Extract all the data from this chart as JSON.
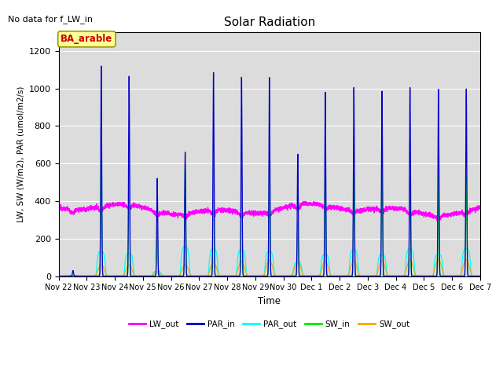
{
  "title": "Solar Radiation",
  "subtitle": "No data for f_LW_in",
  "xlabel": "Time",
  "ylabel": "LW, SW (W/m2), PAR (umol/m2/s)",
  "ylim": [
    0,
    1300
  ],
  "yticks": [
    0,
    200,
    400,
    600,
    800,
    1000,
    1200
  ],
  "background_color": "#dcdcdc",
  "legend_labels": [
    "LW_out",
    "PAR_in",
    "PAR_out",
    "SW_in",
    "SW_out"
  ],
  "legend_colors": [
    "#ff00ff",
    "#0000cd",
    "#00ffff",
    "#00ee00",
    "#ffa500"
  ],
  "annotation_text": "BA_arable",
  "annotation_color": "#cc0000",
  "annotation_bg": "#ffff99",
  "n_days": 15,
  "par_in_peaks": [
    30,
    1120,
    1070,
    520,
    660,
    1090,
    1060,
    1060,
    650,
    980,
    1005,
    985,
    1005,
    1000,
    1000
  ],
  "par_out_peaks": [
    5,
    130,
    120,
    25,
    155,
    145,
    140,
    130,
    75,
    115,
    140,
    115,
    145,
    115,
    145
  ],
  "sw_in_peaks": [
    5,
    620,
    590,
    255,
    595,
    600,
    575,
    595,
    295,
    515,
    545,
    535,
    530,
    545,
    540
  ],
  "sw_out_peaks": [
    2,
    60,
    58,
    18,
    62,
    72,
    78,
    85,
    75,
    78,
    82,
    82,
    87,
    87,
    87
  ],
  "lw_base": 355,
  "lw_amplitude": 18,
  "lw_noise_std": 6
}
